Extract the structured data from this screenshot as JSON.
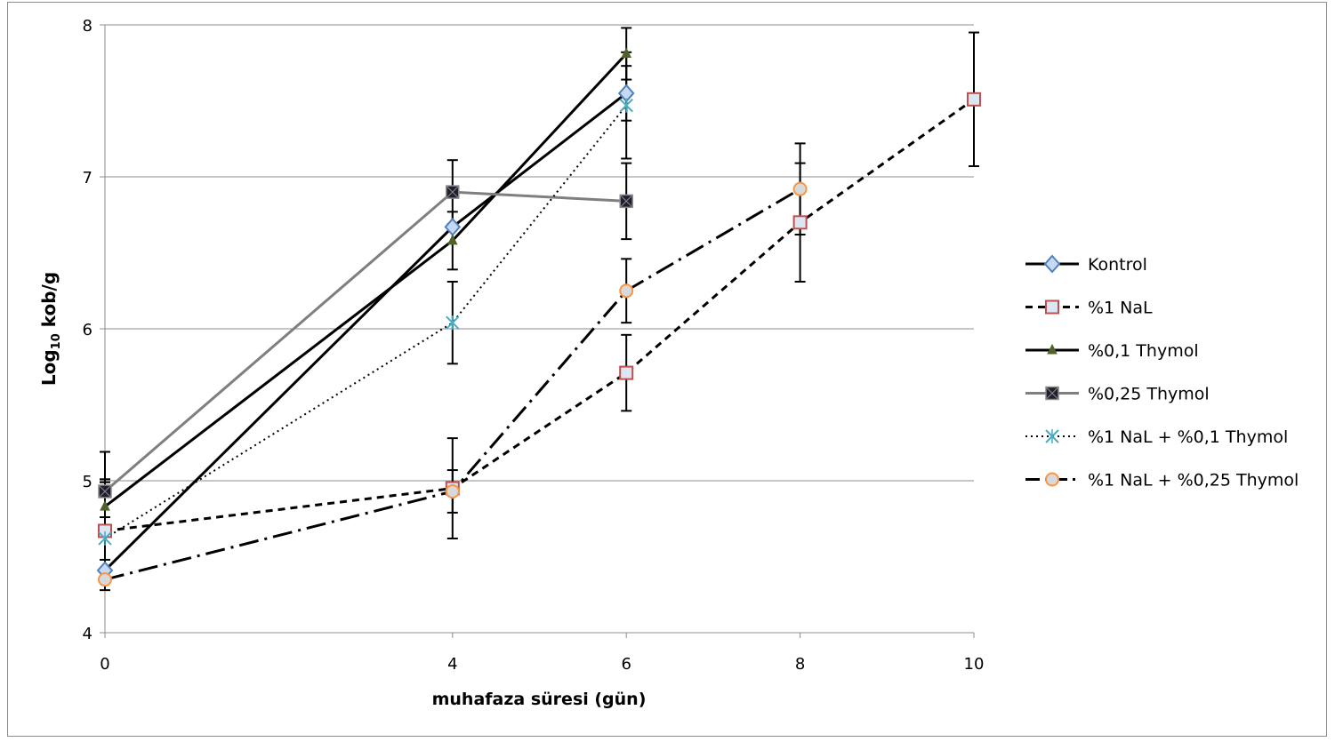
{
  "chart_data": {
    "type": "line",
    "title": "",
    "xlabel": "muhafaza süresi (gün)",
    "ylabel": {
      "prefix": "Log",
      "subscript": "10",
      "suffix": " kob/g"
    },
    "xlim": [
      0,
      10
    ],
    "ylim": [
      4,
      8
    ],
    "x_ticks": [
      "0",
      "4",
      "6",
      "8",
      "10"
    ],
    "y_ticks": [
      "4",
      "5",
      "6",
      "7",
      "8"
    ],
    "grid": "horizontal",
    "legend_position": "right",
    "series": [
      {
        "name": "Kontrol",
        "x": [
          0,
          4,
          6
        ],
        "y": [
          4.41,
          6.67,
          7.55
        ],
        "err": [
          0,
          0,
          0.18
        ],
        "color": "#000000",
        "dash": "",
        "marker": "diamond",
        "marker_fill": "#c6d9f1",
        "marker_stroke": "#4f81bd"
      },
      {
        "name": "%1 NaL",
        "x": [
          0,
          4,
          6,
          8,
          10
        ],
        "y": [
          4.67,
          4.95,
          5.71,
          6.7,
          7.51
        ],
        "err": [
          0.34,
          0.33,
          0.25,
          0.39,
          0.44
        ],
        "color": "#000000",
        "dash": "8,6",
        "marker": "square",
        "marker_fill": "#dce6f2",
        "marker_stroke": "#c0504d"
      },
      {
        "name": "%0,1 Thymol",
        "x": [
          0,
          4,
          6
        ],
        "y": [
          4.83,
          6.58,
          7.81
        ],
        "err": [
          0.16,
          0.19,
          0.17
        ],
        "color": "#000000",
        "dash": "",
        "marker": "triangle",
        "marker_fill": "#4f6228",
        "marker_stroke": "#4f6228"
      },
      {
        "name": "%0,25 Thymol",
        "x": [
          0,
          4,
          6
        ],
        "y": [
          4.93,
          6.9,
          6.84
        ],
        "err": [
          0.26,
          0.21,
          0.25
        ],
        "color": "#7f7f7f",
        "dash": "",
        "marker": "xsquare",
        "marker_fill": "#1f1f2f",
        "marker_stroke": "#8c8c8c"
      },
      {
        "name": "%1 NaL + %0,1 Thymol",
        "x": [
          0,
          4,
          6
        ],
        "y": [
          4.62,
          6.04,
          7.47
        ],
        "err": [
          0.14,
          0.27,
          0.35
        ],
        "color": "#000000",
        "dash": "2,4",
        "marker": "asterisk",
        "marker_fill": "none",
        "marker_stroke": "#4bacc6"
      },
      {
        "name": "%1 NaL + %0,25 Thymol",
        "x": [
          0,
          4,
          6,
          8
        ],
        "y": [
          4.35,
          4.93,
          6.25,
          6.92
        ],
        "err": [
          0.07,
          0.14,
          0.21,
          0.3
        ],
        "color": "#000000",
        "dash": "22,7,3,7",
        "marker": "circle",
        "marker_fill": "#d9d9d9",
        "marker_stroke": "#f79646"
      }
    ]
  }
}
